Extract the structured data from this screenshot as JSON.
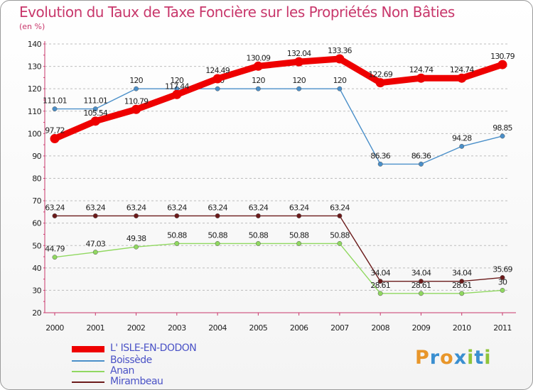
{
  "title": "Evolution du Taux de Taxe Foncière sur les Propriétés Non Bâties",
  "unit": "(en %)",
  "chart_data": {
    "type": "line",
    "title": "Evolution du Taux de Taxe Foncière sur les Propriétés Non Bâties",
    "ylabel": "(en %)",
    "xlabel": "",
    "ylim": [
      20,
      140
    ],
    "yticks": [
      20,
      30,
      40,
      50,
      60,
      70,
      80,
      90,
      100,
      110,
      120,
      130,
      140
    ],
    "categories": [
      "2000",
      "2001",
      "2002",
      "2003",
      "2004",
      "2005",
      "2006",
      "2007",
      "2008",
      "2009",
      "2010",
      "2011"
    ],
    "series": [
      {
        "name": "Boissède",
        "color": "#4a8fc9",
        "values": [
          111.01,
          111.01,
          120,
          120,
          120,
          120,
          120,
          120,
          86.36,
          86.36,
          94.28,
          98.85
        ],
        "labels": [
          "111.01",
          "111.01",
          "120",
          "120",
          "120",
          "120",
          "120",
          "120",
          "86.36",
          "86.36",
          "94.28",
          "98.85"
        ]
      },
      {
        "name": "Anan",
        "color": "#90d860",
        "values": [
          44.79,
          47.03,
          49.38,
          50.88,
          50.88,
          50.88,
          50.88,
          50.88,
          28.61,
          28.61,
          28.61,
          30
        ],
        "labels": [
          "44.79",
          "47.03",
          "49.38",
          "50.88",
          "50.88",
          "50.88",
          "50.88",
          "50.88",
          "28.61",
          "28.61",
          "28.61",
          "30"
        ]
      },
      {
        "name": "Mirambeau",
        "color": "#6b1a1a",
        "values": [
          63.24,
          63.24,
          63.24,
          63.24,
          63.24,
          63.24,
          63.24,
          63.24,
          34.04,
          34.04,
          34.04,
          35.69
        ],
        "labels": [
          "63.24",
          "63.24",
          "63.24",
          "63.24",
          "63.24",
          "63.24",
          "63.24",
          "63.24",
          "34.04",
          "34.04",
          "34.04",
          "35.69"
        ]
      },
      {
        "name": "L' ISLE-EN-DODON",
        "color": "#ee0000",
        "values": [
          97.72,
          105.54,
          110.79,
          117.44,
          124.49,
          130.09,
          132.04,
          133.36,
          122.69,
          124.74,
          124.74,
          130.79
        ],
        "labels": [
          "97.72",
          "105.54",
          "110.79",
          "117.44",
          "124.49",
          "130.09",
          "132.04",
          "133.36",
          "122.69",
          "124.74",
          "124.74",
          "130.79"
        ]
      }
    ]
  },
  "legend": {
    "items": [
      {
        "label": "L' ISLE-EN-DODON",
        "color": "#ee0000"
      },
      {
        "label": "Boissède",
        "color": "#4a8fc9"
      },
      {
        "label": "Anan",
        "color": "#90d860"
      },
      {
        "label": "Mirambeau",
        "color": "#6b1a1a"
      }
    ]
  },
  "logo": {
    "text": "Proxiti",
    "colors": [
      "#e8962a",
      "#3a8fd0",
      "#e8962a",
      "#3a8fd0",
      "#8fc43a",
      "#3a8fd0",
      "#8fc43a"
    ]
  }
}
